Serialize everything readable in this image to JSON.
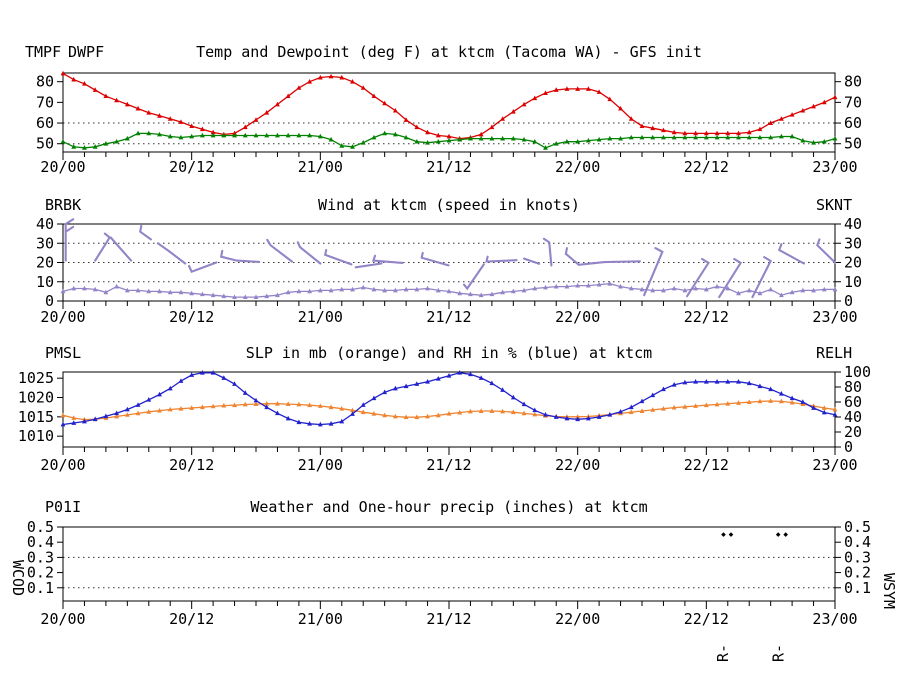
{
  "meta": {
    "station": "ktcm",
    "location": "Tacoma WA",
    "model": "GFS init"
  },
  "x_axis": {
    "tick_hours": [
      0,
      12,
      24,
      36,
      48,
      60,
      72
    ],
    "labels": [
      "20/00",
      "20/12",
      "21/00",
      "21/12",
      "22/00",
      "22/12",
      "23/00"
    ],
    "minor_step_hours": 2,
    "range_hours": [
      0,
      72
    ]
  },
  "chart_data": [
    {
      "id": "temp_dewpoint",
      "type": "line",
      "title": "Temp and Dewpoint (deg F) at ktcm  (Tacoma WA) - GFS init",
      "legend_left": [
        {
          "label": "TMPF",
          "color": "#dd0000"
        },
        {
          "label": "DWPF",
          "color": "#008200"
        }
      ],
      "ylim": [
        46,
        84.2
      ],
      "yticks": [
        "50",
        "60",
        "70",
        "80"
      ],
      "ytick_values": [
        50,
        60,
        70,
        80
      ],
      "grid_y": [
        50,
        60
      ],
      "series": [
        {
          "name": "TMPF",
          "color": "#dd0000",
          "values": [
            84,
            81,
            79,
            76,
            73,
            71,
            69,
            67,
            65,
            63.5,
            62,
            60.5,
            58.5,
            57,
            55.5,
            54.5,
            55,
            58,
            61.5,
            65,
            69,
            73,
            77,
            80,
            82,
            82.5,
            82,
            80,
            77,
            73,
            69.5,
            66,
            61.5,
            58,
            55.5,
            54,
            53.5,
            52.5,
            53,
            54.5,
            58,
            62,
            65.5,
            69,
            72,
            74.5,
            76,
            76.5,
            76.5,
            76.5,
            75,
            71.5,
            67,
            62,
            58.5,
            57.5,
            56.5,
            55.5,
            55,
            55,
            55,
            55,
            55,
            55,
            55.5,
            57,
            60,
            62,
            64,
            66,
            68,
            70,
            72.5
          ]
        },
        {
          "name": "DWPF",
          "color": "#008200",
          "values": [
            51,
            48.5,
            48,
            48.5,
            50,
            51,
            52.5,
            55,
            55,
            54.5,
            53.5,
            53,
            53.5,
            54,
            54,
            54,
            54,
            54,
            54,
            54,
            54,
            54,
            54,
            54,
            53.5,
            52,
            49,
            48.5,
            50.5,
            53,
            55,
            54.5,
            53,
            51,
            50.5,
            51,
            51.5,
            52,
            52.5,
            52.5,
            52.5,
            52.5,
            52.5,
            52,
            51,
            48,
            50,
            51,
            51,
            51.5,
            52,
            52.5,
            52.5,
            53,
            53,
            53,
            53,
            53,
            53,
            53,
            53,
            53,
            53,
            53,
            53,
            53,
            53,
            53.5,
            53.5,
            51.5,
            50.5,
            51,
            52.5
          ]
        }
      ]
    },
    {
      "id": "wind",
      "type": "line",
      "title": "Wind at  ktcm  (speed in knots)",
      "legend_left": [
        {
          "label": "BRBK",
          "color": "#9384c8"
        }
      ],
      "legend_right": [
        {
          "label": "SKNT",
          "color": "#9384c8"
        }
      ],
      "ylim": [
        0,
        40
      ],
      "yticks": [
        "0",
        "10",
        "20",
        "30",
        "40"
      ],
      "ytick_values": [
        0,
        10,
        20,
        30,
        40
      ],
      "grid_y": [
        10,
        20,
        30
      ],
      "series": [
        {
          "name": "SKNT",
          "color": "#9384c8",
          "values": [
            5,
            6.5,
            6.5,
            6,
            4.5,
            7.5,
            5.5,
            5.5,
            5,
            5,
            4.5,
            4.5,
            4,
            3.5,
            3,
            2.5,
            2,
            2,
            2,
            2.5,
            3,
            4.5,
            5,
            5,
            5.5,
            5.5,
            6,
            6,
            7,
            6,
            5.5,
            5.5,
            6,
            6,
            6.5,
            5.5,
            5,
            4,
            3.5,
            3,
            3.5,
            4.5,
            5,
            5.5,
            6.5,
            7,
            7.5,
            7.5,
            8,
            8,
            8.5,
            9,
            7.5,
            6.5,
            6,
            5.5,
            5.5,
            6.5,
            5.5,
            6.5,
            6,
            7.5,
            6.5,
            4,
            5.5,
            4,
            6,
            3,
            4.5,
            5.5,
            5.5,
            6,
            6
          ]
        }
      ],
      "barbs_color": "#9384c8",
      "barbs": [
        [
          [
            0.25,
            21
          ],
          [
            0.25,
            40
          ]
        ],
        [
          [
            0.25,
            40
          ],
          [
            0.95,
            42.5
          ]
        ],
        [
          [
            0.25,
            36
          ],
          [
            0.95,
            38.5
          ]
        ],
        [
          [
            3.9,
            35
          ],
          [
            4.35,
            33
          ],
          [
            3.0,
            21
          ]
        ],
        [
          [
            4.45,
            33
          ],
          [
            6.35,
            21
          ]
        ],
        [
          [
            7.3,
            39
          ],
          [
            7.2,
            36
          ],
          [
            8.2,
            32
          ]
        ],
        [
          [
            8.85,
            30
          ],
          [
            9.85,
            26
          ],
          [
            11.4,
            19.5
          ]
        ],
        [
          [
            11.75,
            18.2
          ],
          [
            12.0,
            15.2
          ],
          [
            14.3,
            20
          ]
        ],
        [
          [
            14.85,
            26
          ],
          [
            14.75,
            23
          ],
          [
            16.2,
            21
          ],
          [
            18.3,
            20.3
          ]
        ],
        [
          [
            19.05,
            31.8
          ],
          [
            19.35,
            29
          ],
          [
            21.35,
            20.5
          ]
        ],
        [
          [
            21.9,
            30.5
          ],
          [
            22.1,
            28
          ],
          [
            24.0,
            19.5
          ]
        ],
        [
          [
            24.55,
            26.5
          ],
          [
            24.45,
            24
          ],
          [
            26.9,
            19
          ]
        ],
        [
          [
            27.3,
            17.5
          ],
          [
            29.7,
            19.5
          ]
        ],
        [
          [
            29.1,
            23.5
          ],
          [
            28.95,
            21
          ],
          [
            31.65,
            19.8
          ]
        ],
        [
          [
            33.55,
            25
          ],
          [
            33.45,
            22.5
          ],
          [
            35.95,
            18.5
          ]
        ],
        [
          [
            37.4,
            8.5
          ],
          [
            37.7,
            6.5
          ],
          [
            39.25,
            19
          ]
        ],
        [
          [
            39.6,
            23
          ],
          [
            39.5,
            20.5
          ],
          [
            42.3,
            21.2
          ]
        ],
        [
          [
            43.0,
            22
          ],
          [
            44.4,
            19.3
          ]
        ],
        [
          [
            44.85,
            32.3
          ],
          [
            45.35,
            30.5
          ],
          [
            45.55,
            18.5
          ]
        ],
        [
          [
            47.0,
            27.5
          ],
          [
            46.9,
            24.5
          ],
          [
            48.1,
            18.8
          ],
          [
            50.5,
            20.2
          ]
        ],
        [
          [
            50.5,
            20.2
          ],
          [
            53.8,
            20.6
          ]
        ],
        [
          [
            54.2,
            3
          ],
          [
            55.9,
            25.5
          ],
          [
            55.25,
            27.5
          ]
        ],
        [
          [
            58.2,
            2.5
          ],
          [
            60.2,
            19.8
          ],
          [
            59.6,
            21.8
          ]
        ],
        [
          [
            61.2,
            2
          ],
          [
            63.2,
            19.8
          ],
          [
            62.6,
            21.8
          ]
        ],
        [
          [
            64.3,
            2
          ],
          [
            66.0,
            20.8
          ],
          [
            65.4,
            22.8
          ]
        ],
        [
          [
            67.0,
            29.5
          ],
          [
            66.8,
            26.5
          ],
          [
            69.1,
            19.5
          ]
        ],
        [
          [
            70.55,
            32
          ],
          [
            70.35,
            29
          ],
          [
            72.0,
            20
          ]
        ]
      ]
    },
    {
      "id": "slp_rh",
      "type": "line",
      "title": "SLP in mb (orange) and RH in % (blue) at  ktcm",
      "legend_left": [
        {
          "label": "PMSL",
          "color": "#ef8430"
        }
      ],
      "legend_right": [
        {
          "label": "RELH",
          "color": "#2222cc"
        }
      ],
      "ylim": [
        1007.2,
        1026.6
      ],
      "yticks": [
        "1010",
        "1015",
        "1020",
        "1025"
      ],
      "ytick_values": [
        1010,
        1015,
        1020,
        1025
      ],
      "y2lim": [
        0,
        100
      ],
      "y2ticks": [
        "0",
        "20",
        "40",
        "60",
        "80",
        "100"
      ],
      "y2tick_values": [
        0,
        20,
        40,
        60,
        80,
        100
      ],
      "grid_y": [],
      "series": [
        {
          "name": "PMSL",
          "color": "#ef8430",
          "axis": "left",
          "values": [
            1015.4,
            1014.7,
            1014.3,
            1014.4,
            1014.7,
            1015.1,
            1015.5,
            1015.9,
            1016.3,
            1016.6,
            1016.9,
            1017.1,
            1017.3,
            1017.5,
            1017.7,
            1017.9,
            1018.0,
            1018.2,
            1018.3,
            1018.4,
            1018.4,
            1018.3,
            1018.2,
            1018.0,
            1017.8,
            1017.5,
            1017.1,
            1016.7,
            1016.2,
            1015.8,
            1015.4,
            1015.1,
            1014.9,
            1014.9,
            1015.1,
            1015.4,
            1015.8,
            1016.1,
            1016.4,
            1016.5,
            1016.5,
            1016.4,
            1016.2,
            1015.9,
            1015.6,
            1015.3,
            1015.1,
            1015.0,
            1015.0,
            1015.1,
            1015.3,
            1015.6,
            1015.9,
            1016.2,
            1016.5,
            1016.8,
            1017.1,
            1017.4,
            1017.6,
            1017.8,
            1018.0,
            1018.2,
            1018.4,
            1018.6,
            1018.8,
            1019.0,
            1019.1,
            1019.0,
            1018.7,
            1018.3,
            1017.8,
            1017.3,
            1016.9
          ]
        },
        {
          "name": "RELH",
          "color": "#2222cc",
          "axis": "right",
          "values": [
            30,
            32,
            34,
            37,
            41,
            45,
            50,
            56,
            63,
            70,
            78,
            88,
            96,
            99,
            99,
            92,
            84,
            72,
            62,
            53,
            45,
            38,
            33,
            31,
            30,
            31,
            34,
            44,
            56,
            65,
            73,
            78,
            81,
            84,
            87,
            91,
            95,
            99,
            97,
            92,
            85,
            76,
            66,
            57,
            49,
            43,
            40,
            38,
            37,
            38,
            40,
            43,
            47,
            53,
            61,
            69,
            77,
            83,
            86,
            87,
            87,
            87,
            87,
            87,
            85,
            81,
            77,
            71,
            65,
            60,
            52,
            46,
            43
          ]
        }
      ]
    },
    {
      "id": "precip_weather",
      "type": "line",
      "title": "Weather and One-hour precip (inches) at  ktcm",
      "legend_left": [
        {
          "label": "P01I",
          "color": "#008200"
        }
      ],
      "side_label_left": {
        "text": "WCOD",
        "color": "#336699"
      },
      "side_label_right": {
        "text": "WSYM",
        "color": "#000000"
      },
      "ylim": [
        0.013,
        0.5
      ],
      "yticks": [
        "0.1",
        "0.2",
        "0.3",
        "0.4",
        "0.5"
      ],
      "ytick_values": [
        0.1,
        0.2,
        0.3,
        0.4,
        0.5
      ],
      "grid_y": [
        0.1,
        0.3
      ],
      "series": [
        {
          "name": "P01I",
          "color": "#008200",
          "values": [
            0,
            0,
            0,
            0,
            0,
            0,
            0,
            0,
            0,
            0,
            0,
            0,
            0,
            0,
            0,
            0,
            0,
            0,
            0,
            0,
            0,
            0,
            0,
            0,
            0,
            0,
            0,
            0,
            0,
            0,
            0,
            0,
            0,
            0,
            0,
            0,
            0,
            0,
            0,
            0,
            0,
            0,
            0,
            0,
            0,
            0,
            0,
            0,
            0,
            0,
            0,
            0,
            0,
            0,
            0,
            0,
            0,
            0,
            0,
            0,
            0,
            0,
            0,
            0,
            0,
            0,
            0,
            0,
            0,
            0,
            0,
            0,
            0
          ]
        }
      ],
      "weather_symbols": {
        "level": 0.45,
        "color": "#000000",
        "dots_hours": [
          61.6,
          62.3,
          66.7,
          67.4
        ]
      },
      "wcod_labels": [
        {
          "hour": 62.0,
          "text": "R-",
          "color": "#336699"
        },
        {
          "hour": 67.2,
          "text": "R-",
          "color": "#336699"
        }
      ]
    }
  ]
}
